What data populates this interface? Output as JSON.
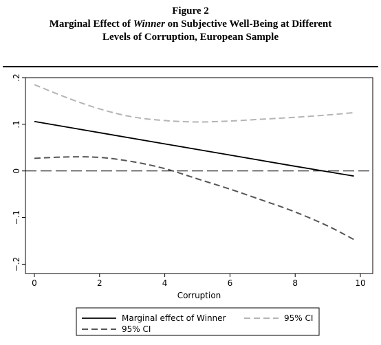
{
  "figure": {
    "label": "Figure 2",
    "title_before": "Marginal Effect of ",
    "title_italic": "Winner",
    "title_after_line1": " on Subjective Well-Being at Different",
    "title_line2": "Levels of Corruption, European Sample"
  },
  "chart_data": {
    "type": "line",
    "xlabel": "Corruption",
    "ylabel": "",
    "xlim": [
      0,
      10
    ],
    "ylim": [
      -0.22,
      0.2
    ],
    "x_ticks": [
      0,
      2,
      4,
      6,
      8,
      10
    ],
    "x_tick_labels": [
      "0",
      "2",
      "4",
      "6",
      "8",
      "10"
    ],
    "y_ticks": [
      -0.2,
      -0.1,
      0,
      0.1,
      0.2
    ],
    "y_tick_labels": [
      "−.2",
      "−.1",
      "0",
      ".1",
      ".2"
    ],
    "reference_line": {
      "y": 0,
      "style": "long-dash"
    },
    "series": [
      {
        "name": "Marginal effect of Winner",
        "color": "#000000",
        "style": "solid",
        "x": [
          0,
          2,
          4,
          6,
          8,
          9.8
        ],
        "y": [
          0.106,
          0.082,
          0.058,
          0.034,
          0.01,
          -0.011
        ]
      },
      {
        "name": "95% CI",
        "color": "#b4b4b4",
        "style": "dashed",
        "x": [
          0,
          1,
          2,
          3,
          4,
          5,
          6,
          7,
          8,
          9,
          9.8
        ],
        "y": [
          0.185,
          0.157,
          0.133,
          0.116,
          0.108,
          0.105,
          0.107,
          0.111,
          0.115,
          0.12,
          0.125
        ]
      },
      {
        "name": "95% CI",
        "color": "#555555",
        "style": "dashed",
        "x": [
          0,
          1,
          2,
          3,
          4,
          5,
          6,
          7,
          8,
          9,
          9.8
        ],
        "y": [
          0.027,
          0.03,
          0.029,
          0.02,
          0.005,
          -0.017,
          -0.039,
          -0.063,
          -0.088,
          -0.118,
          -0.147
        ]
      }
    ],
    "legend": {
      "placement": "bottom",
      "entries": [
        {
          "label": "Marginal effect of Winner",
          "series": 0
        },
        {
          "label": "95% CI",
          "series": 1
        },
        {
          "label": "95% CI",
          "series": 2
        }
      ]
    },
    "grid": false
  }
}
